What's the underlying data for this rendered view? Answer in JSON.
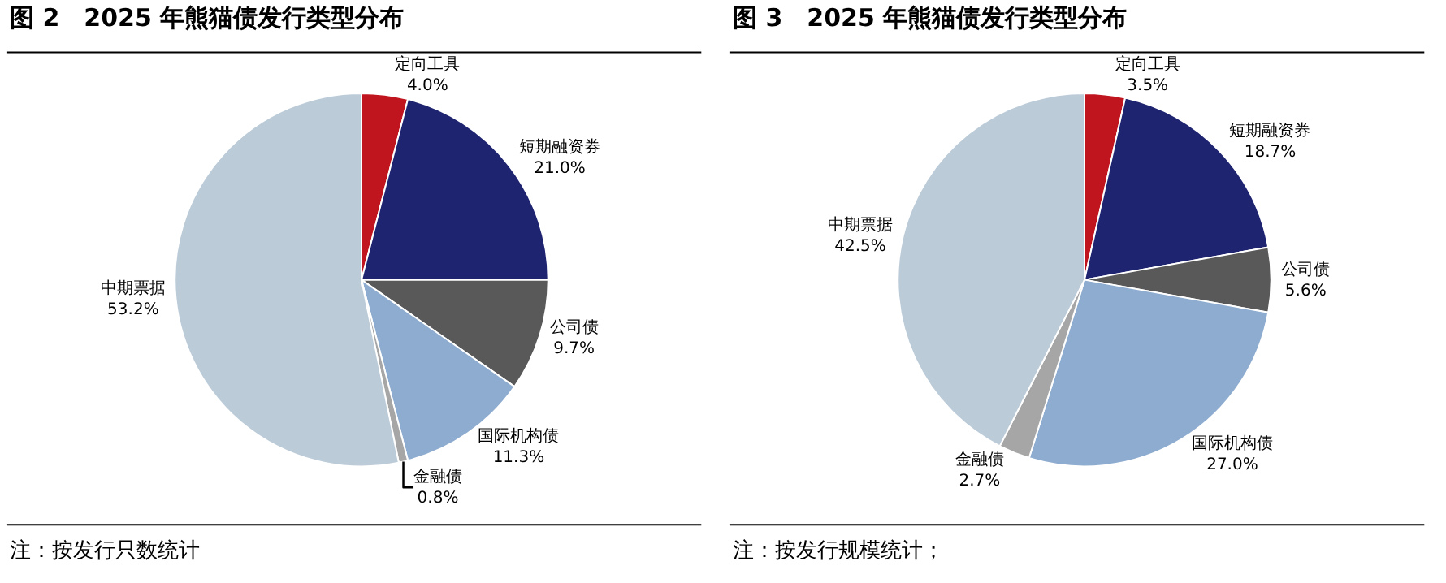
{
  "chart_data": [
    {
      "type": "pie",
      "title": "图 2　2025 年熊猫债发行类型分布",
      "categories": [
        "定向工具",
        "短期融资券",
        "公司债",
        "国际机构债",
        "金融债",
        "中期票据"
      ],
      "values": [
        4.0,
        21.0,
        9.7,
        11.3,
        0.8,
        53.2
      ],
      "value_labels": [
        "4.0%",
        "21.0%",
        "9.7%",
        "11.3%",
        "0.8%",
        "53.2%"
      ],
      "colors": [
        "#c0141e",
        "#1f2470",
        "#595959",
        "#8eaccf",
        "#a6a6a6",
        "#bccbd8"
      ],
      "annotations": [
        "注：按发行只数统计"
      ]
    },
    {
      "type": "pie",
      "title": "图 3　2025 年熊猫债发行类型分布",
      "categories": [
        "定向工具",
        "短期融资券",
        "公司债",
        "国际机构债",
        "金融债",
        "中期票据"
      ],
      "values": [
        3.5,
        18.7,
        5.6,
        27.0,
        2.7,
        42.5
      ],
      "value_labels": [
        "3.5%",
        "18.7%",
        "5.6%",
        "27.0%",
        "2.7%",
        "42.5%"
      ],
      "colors": [
        "#c0141e",
        "#1f2470",
        "#595959",
        "#8eaccf",
        "#a6a6a6",
        "#bccbd8"
      ],
      "annotations": [
        "注：按发行规模统计；"
      ]
    }
  ]
}
